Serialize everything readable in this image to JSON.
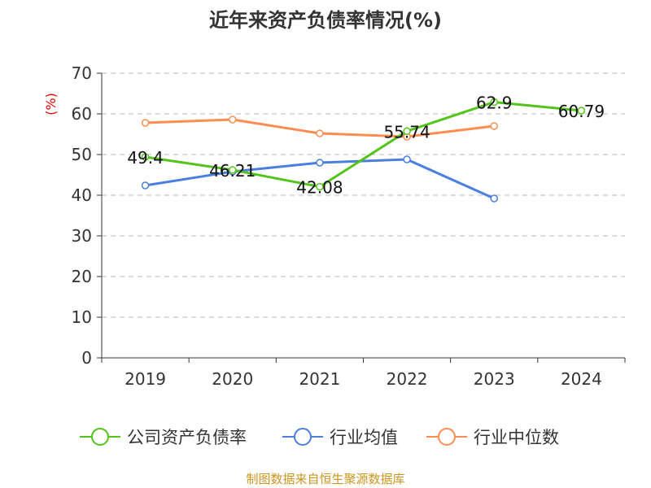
{
  "chart_data": {
    "type": "line",
    "title": "近年来资产负债率情况(%)",
    "ylabel": "(%)",
    "categories": [
      "2019",
      "2020",
      "2021",
      "2022",
      "2023",
      "2024"
    ],
    "ylim": [
      0,
      70
    ],
    "yticks": [
      0,
      10,
      20,
      30,
      40,
      50,
      60,
      70
    ],
    "grid": true,
    "legend_placement": "bottom",
    "series": [
      {
        "name": "公司资产负债率",
        "color": "#52c41a",
        "values": [
          49.4,
          46.21,
          42.08,
          55.74,
          62.9,
          60.79
        ],
        "labels": [
          "49.4",
          "46.21",
          "42.08",
          "55.74",
          "62.9",
          "60.79"
        ]
      },
      {
        "name": "行业均值",
        "color": "#4a7fe0",
        "values": [
          42.4,
          45.8,
          48.0,
          48.8,
          39.2,
          null
        ]
      },
      {
        "name": "行业中位数",
        "color": "#ff8c50",
        "values": [
          57.8,
          58.6,
          55.2,
          54.4,
          57.0,
          null
        ]
      }
    ]
  },
  "footer": "制图数据来自恒生聚源数据库"
}
